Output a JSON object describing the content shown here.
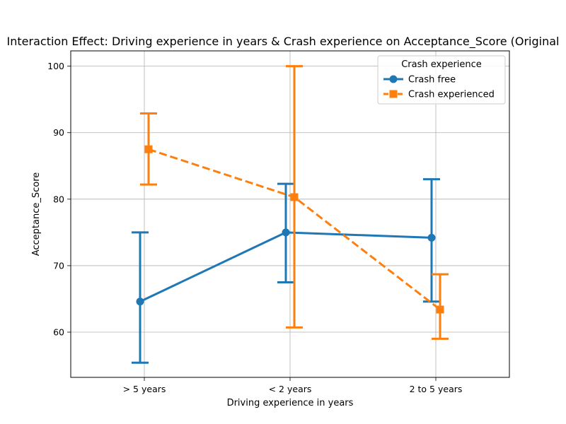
{
  "chart_data": {
    "type": "line",
    "title": "Interaction Effect: Driving experience in years & Crash experience on Acceptance_Score (Original",
    "xlabel": "Driving experience in years",
    "ylabel": "Acceptance_Score",
    "categories": [
      "> 5 years",
      "< 2 years",
      "2 to 5 years"
    ],
    "ylim": [
      53.2,
      102.3
    ],
    "yticks": [
      60,
      70,
      80,
      90,
      100
    ],
    "grid": true,
    "legend": {
      "title": "Crash experience",
      "placement": "top-right"
    },
    "series": [
      {
        "name": "Crash free",
        "color": "#1f77b4",
        "marker": "circle",
        "linestyle": "solid",
        "values": [
          64.6,
          75.0,
          74.2
        ],
        "err_low": [
          55.4,
          67.5,
          64.6
        ],
        "err_high": [
          75.0,
          82.3,
          83.0
        ]
      },
      {
        "name": "Crash experienced",
        "color": "#ff7f0e",
        "marker": "square",
        "linestyle": "dashed",
        "values": [
          87.5,
          80.3,
          63.4
        ],
        "err_low": [
          82.2,
          60.7,
          59.0
        ],
        "err_high": [
          92.9,
          100.0,
          68.7
        ]
      }
    ]
  }
}
